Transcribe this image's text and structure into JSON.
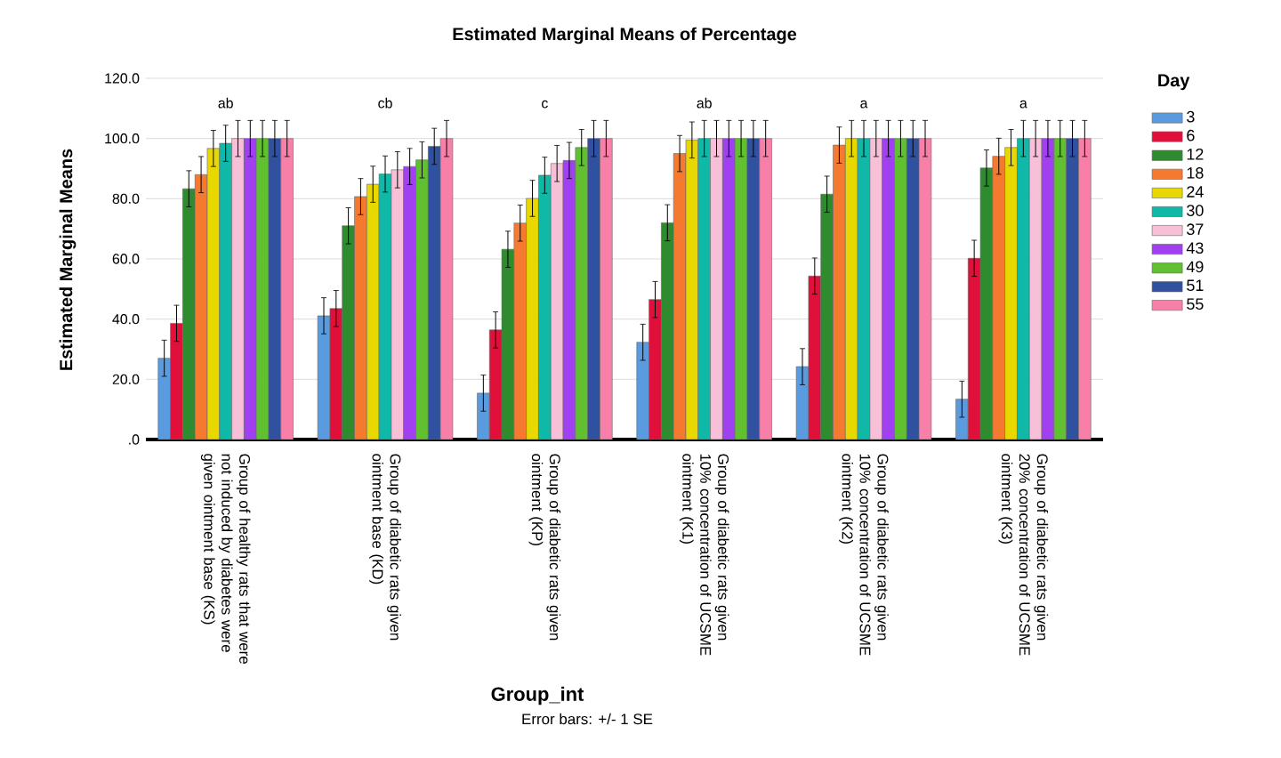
{
  "chart_data": {
    "type": "bar",
    "title": "Estimated Marginal Means of Percentage",
    "xlabel": "Group_int",
    "ylabel": "Estimated Marginal Means",
    "legend_title": "Day",
    "categories": [
      "Group of healthy rats that were not induced by diabetes were given ointment base (KS)",
      "Group of diabetic rats given ointment base (KD)",
      "Group of diabetic rats given ointment (KP)",
      "Group of diabetic rats given 10% concentration of UCSME ointment (K1)",
      "Group of diabetic rats given 10% concentration of UCSME ointment (K2)",
      "Group of diabetic rats given 20% concentration of UCSME ointment (K3)"
    ],
    "series": [
      {
        "name": "3",
        "color": "#5a9be0",
        "values": [
          27,
          41.1,
          15.4,
          32.3,
          24.2,
          13.4
        ],
        "errors": [
          6,
          6,
          6,
          6,
          6,
          6
        ]
      },
      {
        "name": "6",
        "color": "#e0103a",
        "values": [
          38.6,
          43.5,
          36.4,
          46.5,
          54.3,
          60.2
        ],
        "errors": [
          6,
          6,
          6,
          6,
          6,
          6
        ]
      },
      {
        "name": "12",
        "color": "#2e8b2e",
        "values": [
          83.3,
          71,
          63.2,
          72,
          81.5,
          90.2
        ],
        "errors": [
          6,
          6,
          6,
          6,
          6,
          6
        ]
      },
      {
        "name": "18",
        "color": "#f57a30",
        "values": [
          88,
          80.7,
          71.9,
          95,
          97.8,
          94.1
        ],
        "errors": [
          6,
          6,
          6,
          6,
          6,
          6
        ]
      },
      {
        "name": "24",
        "color": "#e8d800",
        "values": [
          96.7,
          84.8,
          80.1,
          99.5,
          100,
          97
        ],
        "errors": [
          6,
          6,
          6,
          6,
          6,
          6
        ]
      },
      {
        "name": "30",
        "color": "#10b8a8",
        "values": [
          98.4,
          88.2,
          87.8,
          100,
          100,
          100
        ],
        "errors": [
          6,
          6,
          6,
          6,
          6,
          6
        ]
      },
      {
        "name": "37",
        "color": "#f8c0d8",
        "values": [
          100,
          89.6,
          91.7,
          100,
          100,
          100
        ],
        "errors": [
          6,
          6,
          6,
          6,
          6,
          6
        ]
      },
      {
        "name": "43",
        "color": "#a040f0",
        "values": [
          100,
          90.7,
          92.7,
          100,
          100,
          100
        ],
        "errors": [
          6,
          6,
          6,
          6,
          6,
          6
        ]
      },
      {
        "name": "49",
        "color": "#60c030",
        "values": [
          100,
          92.9,
          97,
          100,
          100,
          100
        ],
        "errors": [
          6,
          6,
          6,
          6,
          6,
          6
        ]
      },
      {
        "name": "51",
        "color": "#3050a0",
        "values": [
          100,
          97.4,
          100,
          100,
          100,
          100
        ],
        "errors": [
          6,
          6,
          6,
          6,
          6,
          6
        ]
      },
      {
        "name": "55",
        "color": "#f880a8",
        "values": [
          100,
          100,
          100,
          100,
          100,
          100
        ],
        "errors": [
          6,
          6,
          6,
          6,
          6,
          6
        ]
      }
    ],
    "ylim": [
      0,
      120
    ],
    "yticks": [
      {
        "value": 0,
        "label": ".0"
      },
      {
        "value": 20,
        "label": "20.0"
      },
      {
        "value": 40,
        "label": "40.0"
      },
      {
        "value": 60,
        "label": "60.0"
      },
      {
        "value": 80,
        "label": "80.0"
      },
      {
        "value": 100,
        "label": "100.0"
      },
      {
        "value": 120,
        "label": "120.0"
      }
    ],
    "grid": "y",
    "legend": "right",
    "annotations": [
      "ab",
      "cb",
      "c",
      "ab",
      "a",
      "a",
      "Error bars: +/- 1 SE"
    ]
  }
}
